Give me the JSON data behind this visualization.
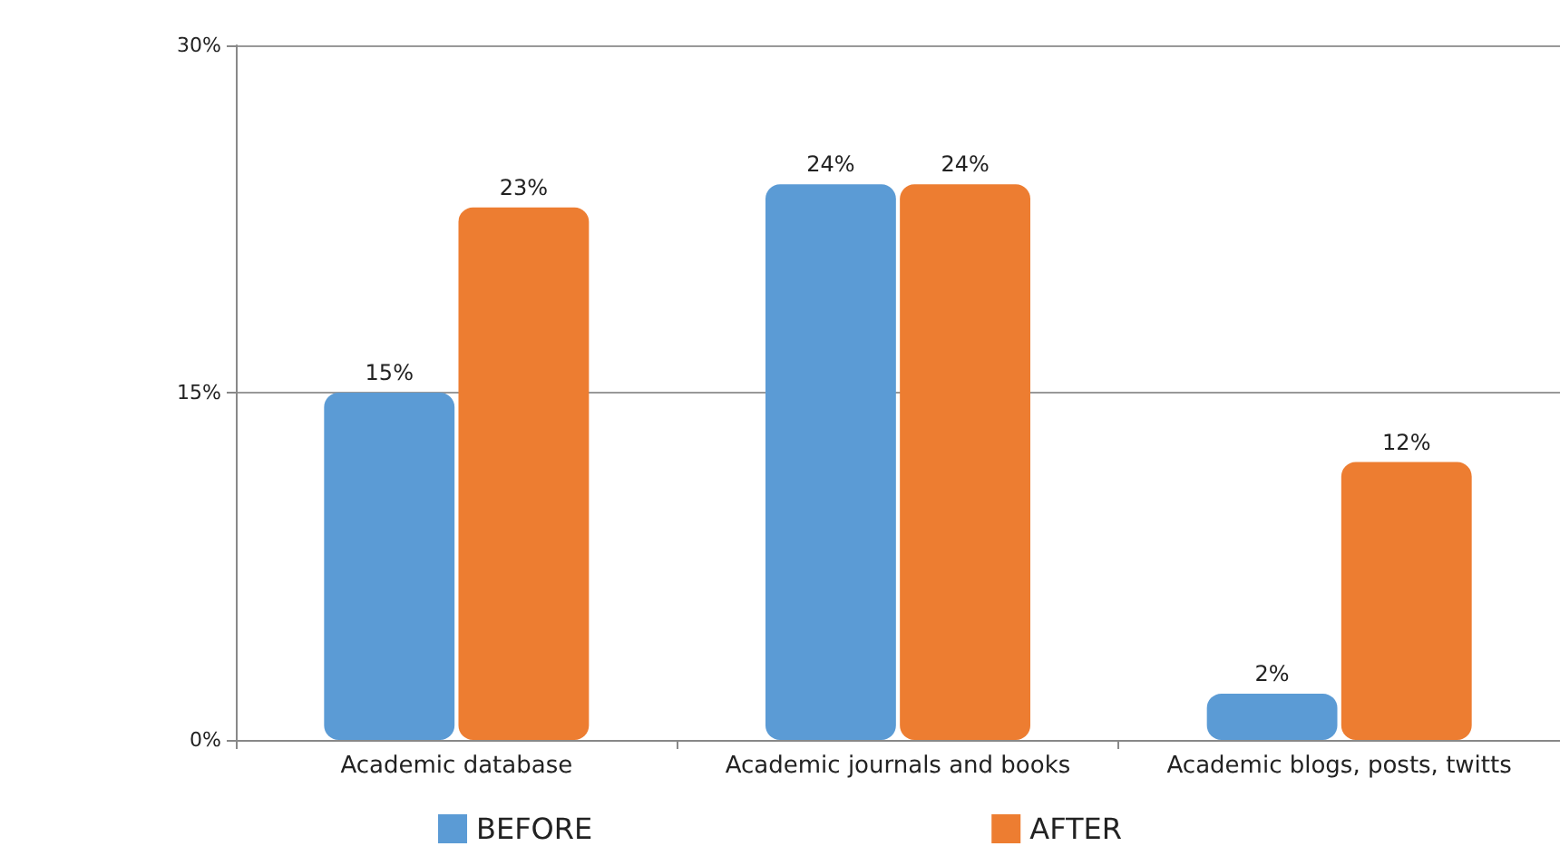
{
  "chart_data": {
    "type": "bar",
    "categories": [
      "Academic database",
      "Academic journals and books",
      "Academic blogs, posts, twitts"
    ],
    "series": [
      {
        "name": "BEFORE",
        "color": "#5b9bd5",
        "values": [
          15,
          24,
          2
        ],
        "value_labels": [
          "15%",
          "24%",
          "2%"
        ]
      },
      {
        "name": "AFTER",
        "color": "#ed7d31",
        "values": [
          23,
          24,
          12
        ],
        "value_labels": [
          "23%",
          "24%",
          "12%"
        ]
      }
    ],
    "ylim": [
      0,
      30
    ],
    "yticks": [
      {
        "value": 0,
        "label": "0%"
      },
      {
        "value": 15,
        "label": "15%"
      },
      {
        "value": 30,
        "label": "30%"
      }
    ],
    "grid": "y",
    "legend": "bottom"
  }
}
